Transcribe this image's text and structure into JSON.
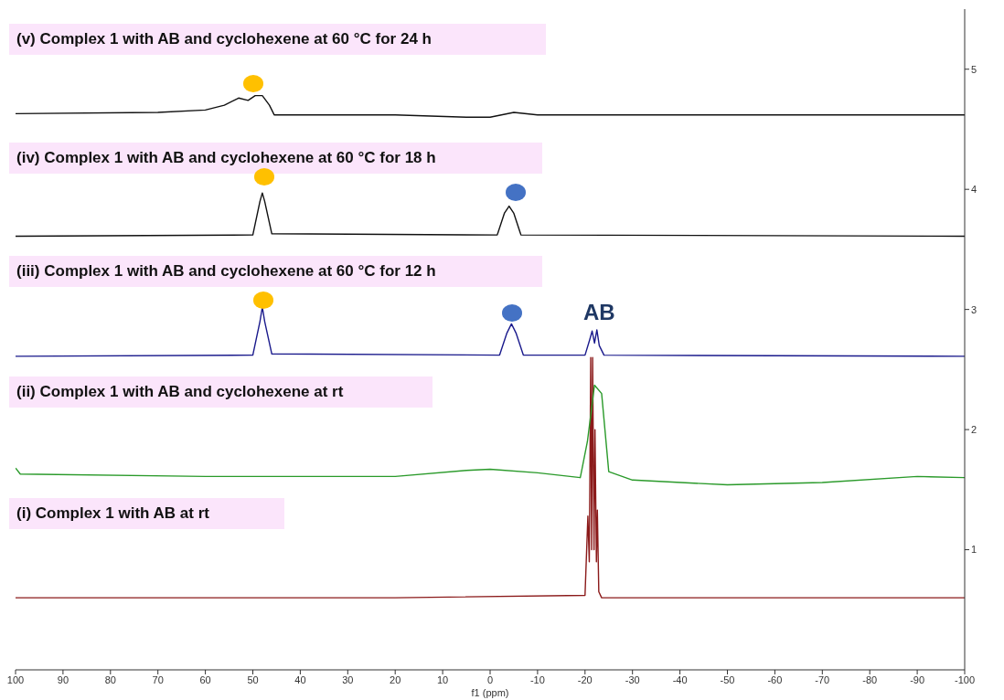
{
  "chart_data": {
    "type": "line",
    "xlabel": "f1 (ppm)",
    "xlim": [
      100,
      -100
    ],
    "xticks": [
      100,
      90,
      80,
      70,
      60,
      50,
      40,
      30,
      20,
      10,
      0,
      -10,
      -20,
      -30,
      -40,
      -50,
      -60,
      -70,
      -80,
      -90,
      -100
    ],
    "ylim": [
      0,
      5.5
    ],
    "yticks": [
      1,
      2,
      3,
      4,
      5
    ],
    "grid": false,
    "legend": false,
    "marker": "none",
    "line_style": "solid",
    "annotations": [
      "(v) Complex 1 with AB and cyclohexene at 60 °C for 24 h",
      "(iv) Complex 1 with AB and cyclohexene at 60 °C for 18 h",
      "(iii) Complex 1 with AB and cyclohexene at 60 °C for 12 h",
      "(ii) Complex 1 with AB and cyclohexene at rt",
      "(i) Complex 1 with AB at rt",
      "AB"
    ],
    "series": [
      {
        "color": "#8b1a1a",
        "x": [
          100,
          20,
          -20,
          -20.6,
          -20.9,
          -21.2,
          -21.4,
          -21.6,
          -21.9,
          -22.1,
          -22.4,
          -22.6,
          -22.9,
          -23.5,
          -100
        ],
        "values": [
          0.6,
          0.6,
          0.62,
          1.28,
          0.9,
          2.6,
          1.0,
          2.6,
          1.0,
          2.0,
          0.9,
          1.33,
          0.65,
          0.6,
          0.6
        ]
      },
      {
        "color": "#2a9a2a",
        "x": [
          100,
          99,
          60,
          20,
          5,
          0,
          -10,
          -19,
          -20.5,
          -22,
          -23.5,
          -25,
          -30,
          -50,
          -70,
          -90,
          -100
        ],
        "values": [
          1.68,
          1.63,
          1.61,
          1.61,
          1.66,
          1.67,
          1.64,
          1.6,
          1.9,
          2.37,
          2.3,
          1.65,
          1.58,
          1.54,
          1.56,
          1.61,
          1.6
        ]
      },
      {
        "color": "#1a1a8c",
        "x": [
          100,
          50,
          48.5,
          48,
          47.5,
          46,
          -2,
          -3.5,
          -4.5,
          -5.5,
          -7,
          -20,
          -21,
          -21.5,
          -22,
          -22.5,
          -23,
          -24,
          -100
        ],
        "values": [
          2.61,
          2.62,
          2.9,
          3.02,
          2.9,
          2.63,
          2.62,
          2.8,
          2.88,
          2.8,
          2.62,
          2.62,
          2.75,
          2.82,
          2.72,
          2.83,
          2.7,
          2.62,
          2.61
        ]
      },
      {
        "color": "#111111",
        "x": [
          100,
          50,
          48.5,
          48,
          47.5,
          46,
          -1.5,
          -3,
          -4,
          -5,
          -6.5,
          -100
        ],
        "values": [
          3.61,
          3.62,
          3.9,
          3.97,
          3.9,
          3.63,
          3.62,
          3.8,
          3.86,
          3.8,
          3.62,
          3.61
        ]
      },
      {
        "color": "#111111",
        "x": [
          100,
          70,
          60,
          56,
          53,
          51,
          49.5,
          48,
          46.5,
          45.5,
          40,
          20,
          5,
          0,
          -5,
          -10,
          -100
        ],
        "values": [
          4.63,
          4.64,
          4.66,
          4.7,
          4.76,
          4.74,
          4.78,
          4.78,
          4.7,
          4.62,
          4.62,
          4.62,
          4.6,
          4.6,
          4.64,
          4.62,
          4.62
        ]
      }
    ]
  }
}
